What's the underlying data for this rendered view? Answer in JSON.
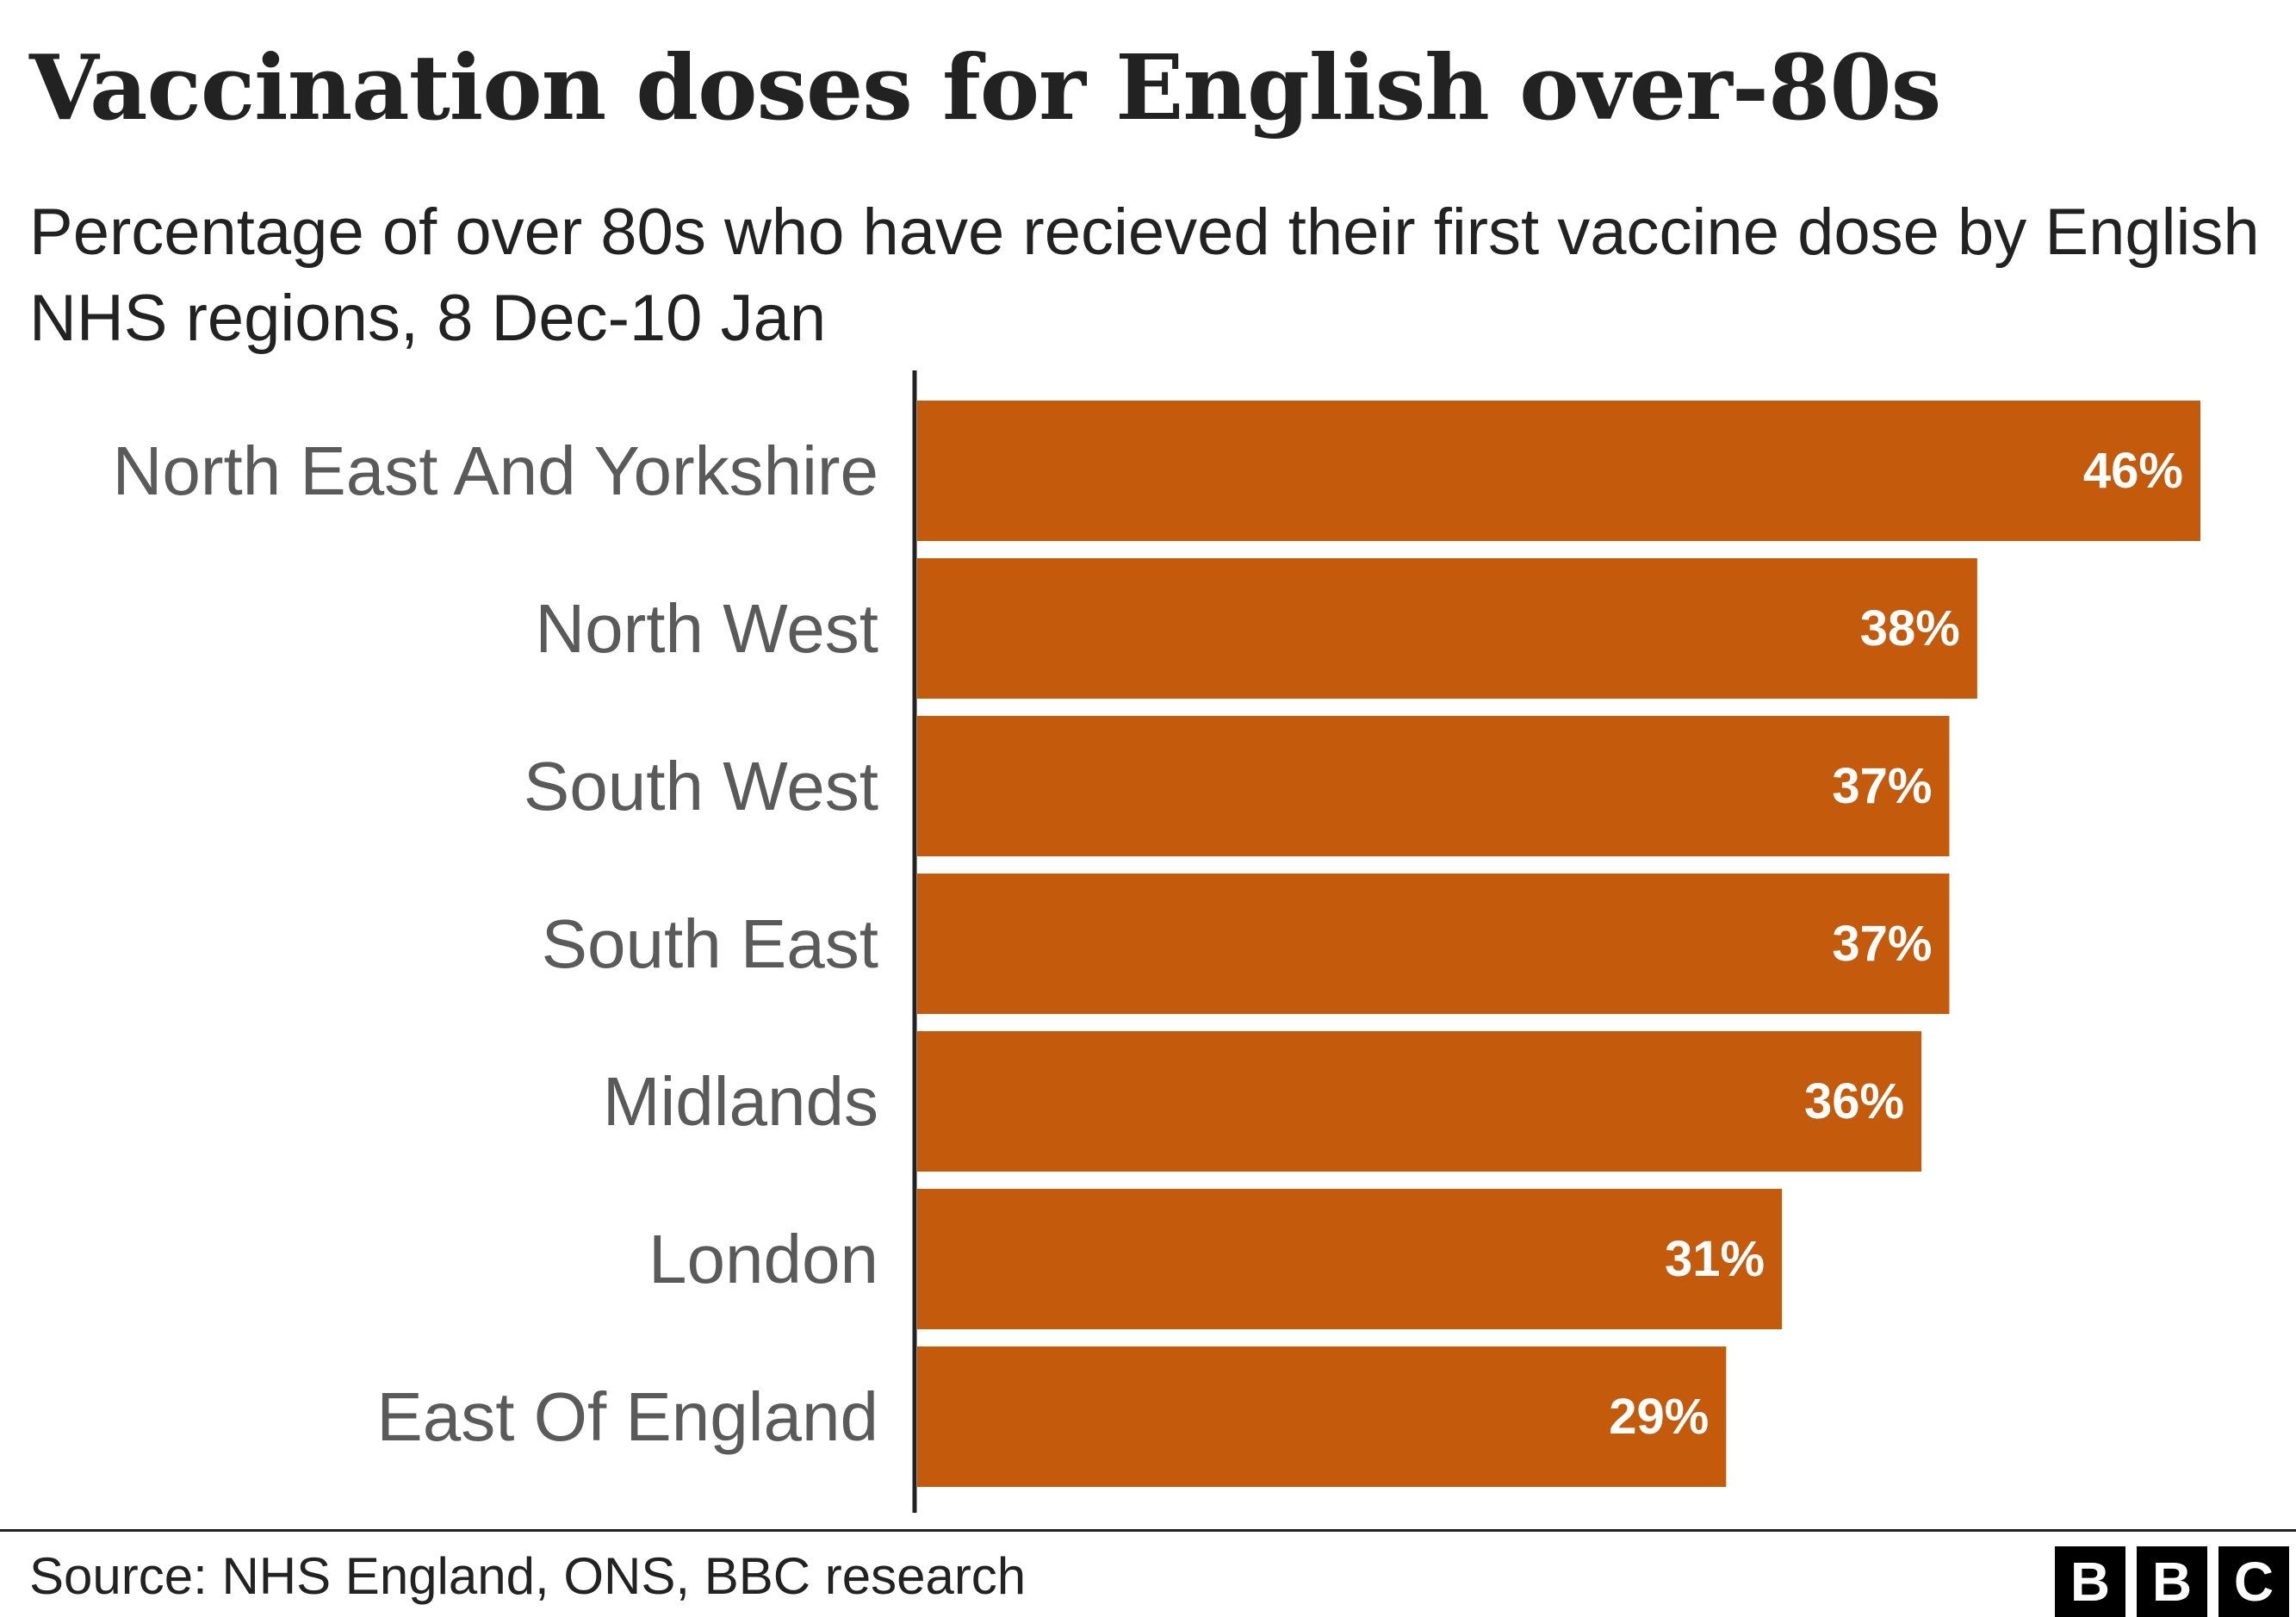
{
  "chart_data": {
    "type": "bar",
    "orientation": "horizontal",
    "title": "Vaccination doses for English over-80s",
    "subtitle": "Percentage of over 80s who have recieved their first vaccine dose by English NHS regions, 8 Dec-10 Jan",
    "categories": [
      "North East And Yorkshire",
      "North West",
      "South West",
      "South East",
      "Midlands",
      "London",
      "East Of England"
    ],
    "values": [
      46,
      38,
      37,
      37,
      36,
      31,
      29
    ],
    "value_labels": [
      "46%",
      "38%",
      "37%",
      "37%",
      "36%",
      "31%",
      "29%"
    ],
    "xlim": [
      0,
      46
    ],
    "bar_color": "#c45a0c",
    "value_label_color": "#ffffff",
    "category_label_color": "#5a5a5a",
    "grid": false,
    "legend": "none"
  },
  "source": "Source: NHS England, ONS, BBC research",
  "logo": [
    "B",
    "B",
    "C"
  ]
}
